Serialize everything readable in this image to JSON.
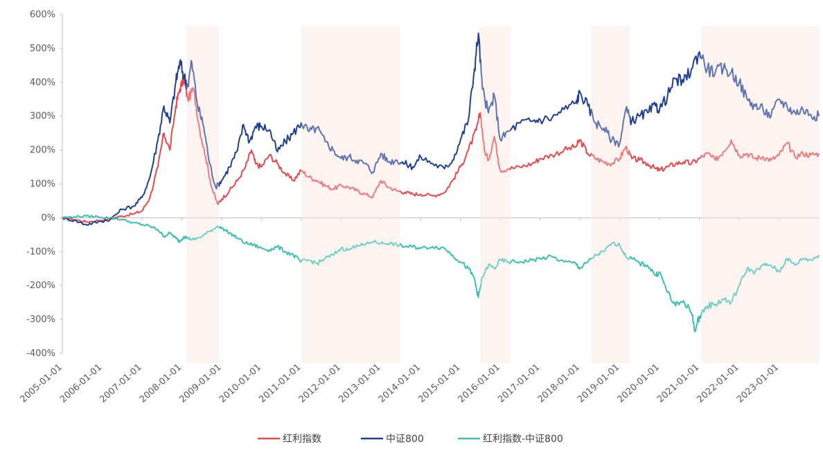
{
  "chart_data": {
    "type": "line",
    "title": "",
    "xlabel": "",
    "ylabel": "",
    "ylim": [
      -400,
      600
    ],
    "y_ticks": [
      600,
      500,
      400,
      300,
      200,
      100,
      0,
      -100,
      -200,
      -300,
      -400
    ],
    "y_tick_labels": [
      "600%",
      "500%",
      "400%",
      "300%",
      "200%",
      "100%",
      "0%",
      "-100%",
      "-200%",
      "-300%",
      "-400%"
    ],
    "x_range": [
      2005.0,
      2024.0
    ],
    "x_ticks": [
      2005,
      2006,
      2007,
      2008,
      2009,
      2010,
      2011,
      2012,
      2013,
      2014,
      2015,
      2016,
      2017,
      2018,
      2019,
      2020,
      2021,
      2022,
      2023
    ],
    "x_tick_labels": [
      "2005-01-01",
      "2006-01-01",
      "2007-01-01",
      "2008-01-01",
      "2009-01-01",
      "2010-01-01",
      "2011-01-01",
      "2012-01-01",
      "2013-01-01",
      "2014-01-01",
      "2015-01-01",
      "2016-01-01",
      "2017-01-01",
      "2018-01-01",
      "2019-01-01",
      "2020-01-01",
      "2021-01-01",
      "2022-01-01",
      "2023-01-01"
    ],
    "shaded_periods": [
      [
        2008.12,
        2008.93
      ],
      [
        2011.0,
        2013.48
      ],
      [
        2015.5,
        2016.25
      ],
      [
        2018.28,
        2019.25
      ],
      [
        2021.05,
        2024.0
      ]
    ],
    "shade_color": "#fdf0ed",
    "legend_position": "bottom-center",
    "series": [
      {
        "name": "红利指数",
        "color": "#e8474c",
        "points": [
          [
            2005.0,
            0
          ],
          [
            2005.3,
            -5
          ],
          [
            2005.6,
            -12
          ],
          [
            2005.9,
            -8
          ],
          [
            2006.2,
            -3
          ],
          [
            2006.5,
            5
          ],
          [
            2006.8,
            12
          ],
          [
            2007.0,
            20
          ],
          [
            2007.2,
            60
          ],
          [
            2007.4,
            150
          ],
          [
            2007.55,
            250
          ],
          [
            2007.7,
            200
          ],
          [
            2007.85,
            330
          ],
          [
            2007.95,
            380
          ],
          [
            2008.05,
            410
          ],
          [
            2008.15,
            350
          ],
          [
            2008.3,
            380
          ],
          [
            2008.45,
            260
          ],
          [
            2008.6,
            180
          ],
          [
            2008.75,
            90
          ],
          [
            2008.9,
            40
          ],
          [
            2009.0,
            55
          ],
          [
            2009.2,
            80
          ],
          [
            2009.4,
            110
          ],
          [
            2009.6,
            150
          ],
          [
            2009.75,
            200
          ],
          [
            2009.85,
            160
          ],
          [
            2010.0,
            150
          ],
          [
            2010.2,
            185
          ],
          [
            2010.4,
            160
          ],
          [
            2010.6,
            130
          ],
          [
            2010.8,
            110
          ],
          [
            2011.0,
            140
          ],
          [
            2011.2,
            120
          ],
          [
            2011.4,
            110
          ],
          [
            2011.6,
            95
          ],
          [
            2011.8,
            85
          ],
          [
            2012.0,
            95
          ],
          [
            2012.2,
            90
          ],
          [
            2012.4,
            80
          ],
          [
            2012.6,
            70
          ],
          [
            2012.8,
            62
          ],
          [
            2013.0,
            110
          ],
          [
            2013.2,
            90
          ],
          [
            2013.4,
            80
          ],
          [
            2013.6,
            75
          ],
          [
            2013.8,
            70
          ],
          [
            2014.0,
            70
          ],
          [
            2014.3,
            65
          ],
          [
            2014.6,
            75
          ],
          [
            2014.8,
            110
          ],
          [
            2015.0,
            150
          ],
          [
            2015.2,
            200
          ],
          [
            2015.4,
            260
          ],
          [
            2015.5,
            310
          ],
          [
            2015.6,
            200
          ],
          [
            2015.7,
            170
          ],
          [
            2015.85,
            240
          ],
          [
            2016.0,
            140
          ],
          [
            2016.2,
            145
          ],
          [
            2016.5,
            150
          ],
          [
            2016.8,
            160
          ],
          [
            2017.0,
            175
          ],
          [
            2017.3,
            185
          ],
          [
            2017.6,
            200
          ],
          [
            2017.9,
            210
          ],
          [
            2018.0,
            230
          ],
          [
            2018.2,
            190
          ],
          [
            2018.4,
            175
          ],
          [
            2018.6,
            165
          ],
          [
            2018.8,
            160
          ],
          [
            2019.0,
            175
          ],
          [
            2019.15,
            210
          ],
          [
            2019.3,
            175
          ],
          [
            2019.5,
            170
          ],
          [
            2019.7,
            160
          ],
          [
            2019.9,
            145
          ],
          [
            2020.0,
            140
          ],
          [
            2020.2,
            150
          ],
          [
            2020.4,
            160
          ],
          [
            2020.6,
            165
          ],
          [
            2020.8,
            160
          ],
          [
            2021.0,
            175
          ],
          [
            2021.2,
            190
          ],
          [
            2021.4,
            170
          ],
          [
            2021.6,
            195
          ],
          [
            2021.8,
            230
          ],
          [
            2022.0,
            185
          ],
          [
            2022.2,
            190
          ],
          [
            2022.4,
            175
          ],
          [
            2022.6,
            180
          ],
          [
            2022.8,
            170
          ],
          [
            2023.0,
            185
          ],
          [
            2023.2,
            220
          ],
          [
            2023.4,
            180
          ],
          [
            2023.6,
            190
          ],
          [
            2023.8,
            185
          ],
          [
            2024.0,
            190
          ]
        ]
      },
      {
        "name": "中证800",
        "color": "#1f3e95",
        "points": [
          [
            2005.0,
            0
          ],
          [
            2005.3,
            -8
          ],
          [
            2005.6,
            -20
          ],
          [
            2005.9,
            -12
          ],
          [
            2006.2,
            -5
          ],
          [
            2006.5,
            25
          ],
          [
            2006.8,
            35
          ],
          [
            2007.0,
            60
          ],
          [
            2007.2,
            120
          ],
          [
            2007.4,
            230
          ],
          [
            2007.55,
            330
          ],
          [
            2007.7,
            280
          ],
          [
            2007.85,
            400
          ],
          [
            2007.95,
            460
          ],
          [
            2008.05,
            420
          ],
          [
            2008.15,
            390
          ],
          [
            2008.25,
            460
          ],
          [
            2008.4,
            330
          ],
          [
            2008.55,
            270
          ],
          [
            2008.7,
            160
          ],
          [
            2008.85,
            90
          ],
          [
            2009.0,
            110
          ],
          [
            2009.2,
            150
          ],
          [
            2009.4,
            200
          ],
          [
            2009.55,
            275
          ],
          [
            2009.7,
            225
          ],
          [
            2009.85,
            270
          ],
          [
            2010.0,
            270
          ],
          [
            2010.2,
            260
          ],
          [
            2010.4,
            195
          ],
          [
            2010.6,
            225
          ],
          [
            2010.8,
            250
          ],
          [
            2011.0,
            280
          ],
          [
            2011.2,
            255
          ],
          [
            2011.4,
            265
          ],
          [
            2011.6,
            225
          ],
          [
            2011.8,
            200
          ],
          [
            2012.0,
            175
          ],
          [
            2012.2,
            180
          ],
          [
            2012.4,
            170
          ],
          [
            2012.6,
            160
          ],
          [
            2012.8,
            135
          ],
          [
            2013.0,
            190
          ],
          [
            2013.2,
            165
          ],
          [
            2013.4,
            170
          ],
          [
            2013.6,
            160
          ],
          [
            2013.8,
            150
          ],
          [
            2014.0,
            180
          ],
          [
            2014.3,
            160
          ],
          [
            2014.6,
            145
          ],
          [
            2014.8,
            170
          ],
          [
            2015.0,
            230
          ],
          [
            2015.2,
            290
          ],
          [
            2015.35,
            440
          ],
          [
            2015.45,
            545
          ],
          [
            2015.55,
            380
          ],
          [
            2015.7,
            310
          ],
          [
            2015.85,
            360
          ],
          [
            2016.0,
            230
          ],
          [
            2016.2,
            255
          ],
          [
            2016.5,
            280
          ],
          [
            2016.8,
            285
          ],
          [
            2017.0,
            290
          ],
          [
            2017.3,
            295
          ],
          [
            2017.6,
            320
          ],
          [
            2017.9,
            340
          ],
          [
            2018.0,
            370
          ],
          [
            2018.2,
            330
          ],
          [
            2018.4,
            280
          ],
          [
            2018.6,
            265
          ],
          [
            2018.8,
            230
          ],
          [
            2019.0,
            220
          ],
          [
            2019.15,
            320
          ],
          [
            2019.3,
            285
          ],
          [
            2019.5,
            300
          ],
          [
            2019.7,
            310
          ],
          [
            2019.9,
            330
          ],
          [
            2020.0,
            320
          ],
          [
            2020.2,
            360
          ],
          [
            2020.4,
            410
          ],
          [
            2020.6,
            400
          ],
          [
            2020.8,
            440
          ],
          [
            2021.0,
            490
          ],
          [
            2021.2,
            440
          ],
          [
            2021.4,
            430
          ],
          [
            2021.6,
            440
          ],
          [
            2021.8,
            430
          ],
          [
            2022.0,
            400
          ],
          [
            2022.2,
            350
          ],
          [
            2022.4,
            330
          ],
          [
            2022.6,
            320
          ],
          [
            2022.8,
            300
          ],
          [
            2023.0,
            350
          ],
          [
            2023.2,
            330
          ],
          [
            2023.4,
            310
          ],
          [
            2023.6,
            320
          ],
          [
            2023.8,
            305
          ],
          [
            2024.0,
            300
          ]
        ]
      },
      {
        "name": "红利指数-中证800",
        "color": "#3bbfb0",
        "points": [
          [
            2005.0,
            0
          ],
          [
            2005.3,
            3
          ],
          [
            2005.6,
            5
          ],
          [
            2005.9,
            3
          ],
          [
            2006.2,
            0
          ],
          [
            2006.5,
            -5
          ],
          [
            2006.8,
            -15
          ],
          [
            2007.0,
            -20
          ],
          [
            2007.2,
            -25
          ],
          [
            2007.4,
            -35
          ],
          [
            2007.55,
            -55
          ],
          [
            2007.7,
            -45
          ],
          [
            2007.85,
            -60
          ],
          [
            2007.95,
            -70
          ],
          [
            2008.05,
            -55
          ],
          [
            2008.15,
            -60
          ],
          [
            2008.3,
            -65
          ],
          [
            2008.5,
            -55
          ],
          [
            2008.7,
            -40
          ],
          [
            2008.9,
            -25
          ],
          [
            2009.0,
            -30
          ],
          [
            2009.2,
            -45
          ],
          [
            2009.4,
            -60
          ],
          [
            2009.6,
            -75
          ],
          [
            2009.8,
            -80
          ],
          [
            2010.0,
            -90
          ],
          [
            2010.2,
            -95
          ],
          [
            2010.4,
            -85
          ],
          [
            2010.6,
            -100
          ],
          [
            2010.8,
            -110
          ],
          [
            2011.0,
            -130
          ],
          [
            2011.2,
            -125
          ],
          [
            2011.4,
            -135
          ],
          [
            2011.6,
            -120
          ],
          [
            2011.8,
            -110
          ],
          [
            2012.0,
            -90
          ],
          [
            2012.2,
            -95
          ],
          [
            2012.4,
            -80
          ],
          [
            2012.6,
            -80
          ],
          [
            2012.8,
            -70
          ],
          [
            2013.0,
            -75
          ],
          [
            2013.2,
            -75
          ],
          [
            2013.4,
            -80
          ],
          [
            2013.6,
            -85
          ],
          [
            2013.8,
            -85
          ],
          [
            2014.0,
            -90
          ],
          [
            2014.3,
            -85
          ],
          [
            2014.6,
            -90
          ],
          [
            2014.8,
            -110
          ],
          [
            2015.0,
            -130
          ],
          [
            2015.2,
            -150
          ],
          [
            2015.35,
            -180
          ],
          [
            2015.45,
            -235
          ],
          [
            2015.55,
            -175
          ],
          [
            2015.7,
            -140
          ],
          [
            2015.85,
            -150
          ],
          [
            2016.0,
            -125
          ],
          [
            2016.2,
            -130
          ],
          [
            2016.5,
            -130
          ],
          [
            2016.8,
            -125
          ],
          [
            2017.0,
            -120
          ],
          [
            2017.3,
            -115
          ],
          [
            2017.6,
            -130
          ],
          [
            2017.9,
            -135
          ],
          [
            2018.0,
            -150
          ],
          [
            2018.2,
            -130
          ],
          [
            2018.4,
            -110
          ],
          [
            2018.6,
            -100
          ],
          [
            2018.8,
            -75
          ],
          [
            2019.0,
            -80
          ],
          [
            2019.15,
            -115
          ],
          [
            2019.3,
            -120
          ],
          [
            2019.5,
            -135
          ],
          [
            2019.7,
            -140
          ],
          [
            2019.9,
            -170
          ],
          [
            2020.0,
            -160
          ],
          [
            2020.2,
            -220
          ],
          [
            2020.4,
            -260
          ],
          [
            2020.6,
            -245
          ],
          [
            2020.8,
            -280
          ],
          [
            2020.9,
            -335
          ],
          [
            2021.0,
            -290
          ],
          [
            2021.2,
            -260
          ],
          [
            2021.4,
            -255
          ],
          [
            2021.6,
            -240
          ],
          [
            2021.8,
            -250
          ],
          [
            2022.0,
            -200
          ],
          [
            2022.2,
            -150
          ],
          [
            2022.4,
            -160
          ],
          [
            2022.6,
            -140
          ],
          [
            2022.8,
            -140
          ],
          [
            2023.0,
            -160
          ],
          [
            2023.2,
            -120
          ],
          [
            2023.4,
            -140
          ],
          [
            2023.6,
            -120
          ],
          [
            2023.8,
            -125
          ],
          [
            2024.0,
            -110
          ]
        ]
      }
    ]
  }
}
